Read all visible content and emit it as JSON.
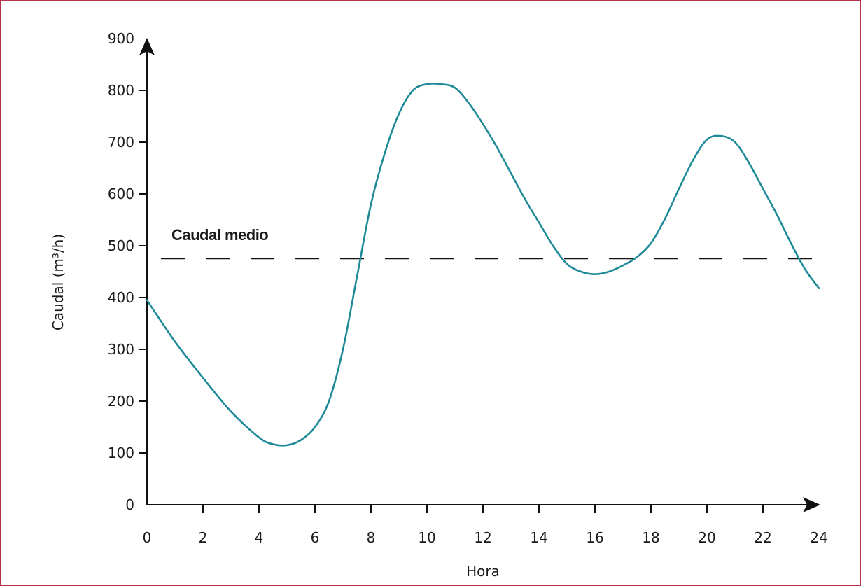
{
  "chart_data": {
    "type": "line",
    "title": "",
    "xlabel": "Hora",
    "ylabel": "Caudal (m³/h)",
    "xlim": [
      0,
      24
    ],
    "ylim": [
      0,
      900
    ],
    "x_ticks": [
      0,
      2,
      4,
      6,
      8,
      10,
      12,
      14,
      16,
      18,
      20,
      22,
      24
    ],
    "y_ticks": [
      0,
      100,
      200,
      300,
      400,
      500,
      600,
      700,
      800,
      900
    ],
    "grid": false,
    "series": [
      {
        "color": "#1e8a98",
        "x": [
          0,
          1,
          2,
          3,
          4,
          4.5,
          5,
          5.5,
          6,
          6.5,
          7,
          7.5,
          8,
          8.5,
          9,
          9.5,
          10,
          10.5,
          11,
          11.5,
          12,
          12.5,
          13,
          13.5,
          14,
          14.5,
          15,
          15.5,
          16,
          16.5,
          17,
          17.5,
          18,
          18.5,
          19,
          19.5,
          20,
          20.5,
          21,
          21.5,
          22,
          22.5,
          23,
          23.5,
          24
        ],
        "y": [
          395,
          315,
          245,
          180,
          130,
          117,
          115,
          125,
          150,
          200,
          300,
          440,
          580,
          680,
          755,
          800,
          812,
          812,
          805,
          775,
          735,
          690,
          640,
          590,
          545,
          500,
          465,
          450,
          445,
          450,
          462,
          478,
          505,
          552,
          610,
          665,
          705,
          712,
          700,
          660,
          610,
          560,
          505,
          455,
          418
        ]
      }
    ],
    "reference_lines": [
      {
        "y": 475,
        "style": "dashed",
        "label": "Caudal medio"
      }
    ]
  }
}
